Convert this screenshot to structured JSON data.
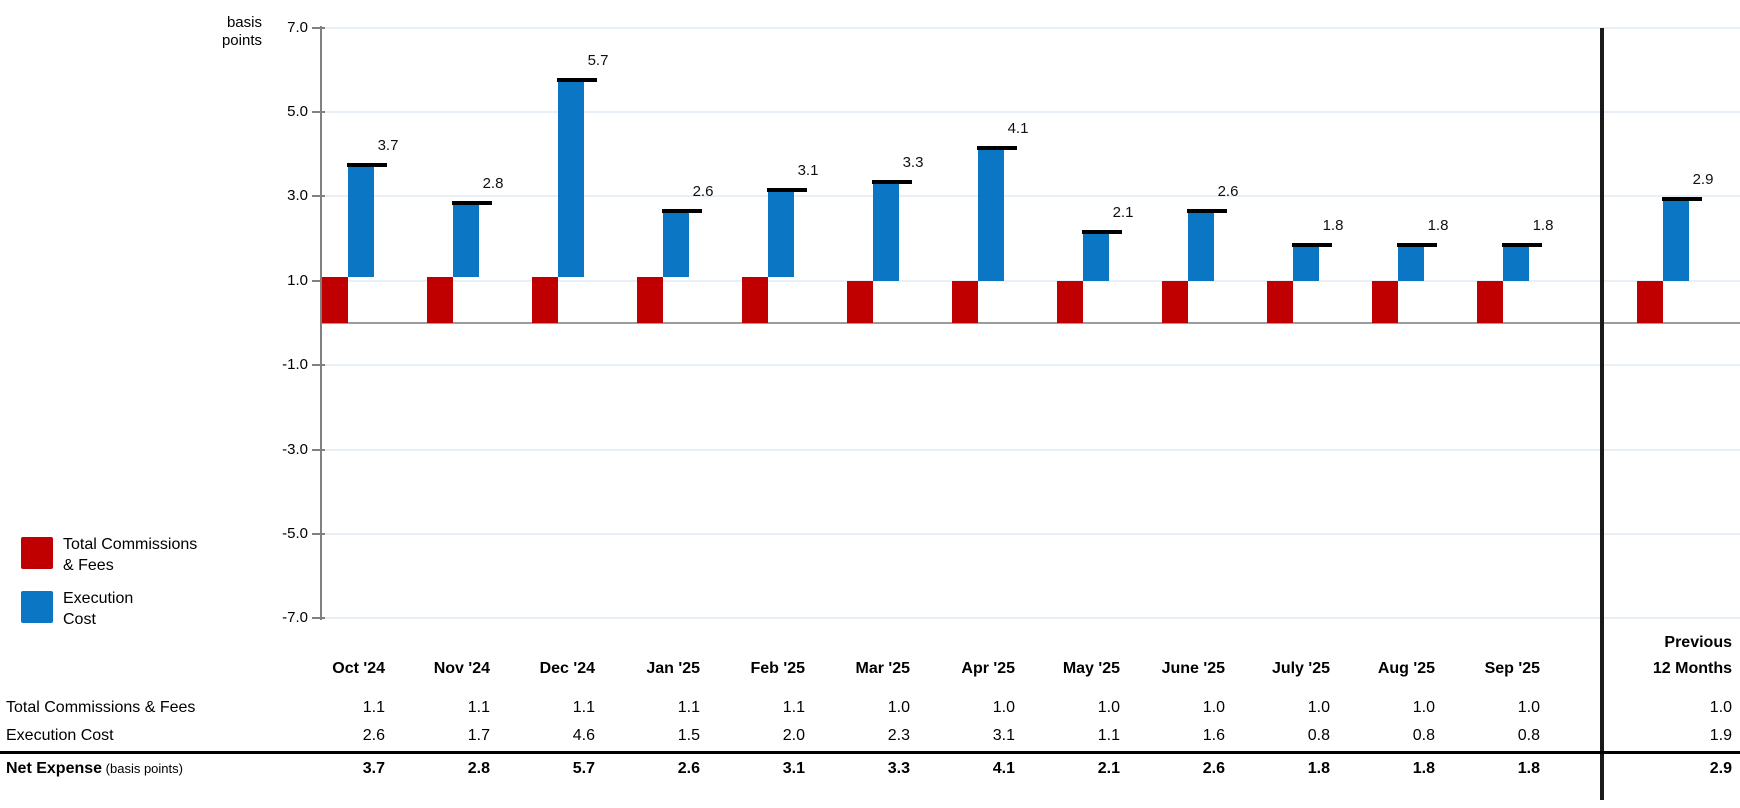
{
  "chart": {
    "y_axis_title_line1": "basis",
    "y_axis_title_line2": "points",
    "y_tick_labels": [
      "7.0",
      "5.0",
      "3.0",
      "1.0",
      "-1.0",
      "-3.0",
      "-5.0",
      "-7.0"
    ]
  },
  "chart_data": {
    "type": "bar",
    "subtype": "stacked-waterfall-column",
    "title": "",
    "xlabel": "",
    "ylabel": "basis points",
    "ylim": [
      -7.0,
      7.0
    ],
    "y_ticks": [
      7.0,
      5.0,
      3.0,
      1.0,
      -1.0,
      -3.0,
      -5.0,
      -7.0
    ],
    "grid": true,
    "legend_position": "bottom-left",
    "categories": [
      "Oct '24",
      "Nov '24",
      "Dec '24",
      "Jan '25",
      "Feb '25",
      "Mar '25",
      "Apr '25",
      "May '25",
      "June '25",
      "July '25",
      "Aug '25",
      "Sep '25",
      "Previous 12 Months"
    ],
    "series": [
      {
        "name": "Total Commissions & Fees",
        "color": "#C00000",
        "values": [
          1.1,
          1.1,
          1.1,
          1.1,
          1.1,
          1.0,
          1.0,
          1.0,
          1.0,
          1.0,
          1.0,
          1.0,
          1.0
        ]
      },
      {
        "name": "Execution Cost",
        "color": "#0B76C4",
        "values": [
          2.6,
          1.7,
          4.6,
          1.5,
          2.0,
          2.3,
          3.1,
          1.1,
          1.6,
          0.8,
          0.8,
          0.8,
          1.9
        ]
      }
    ],
    "totals": {
      "name": "Net Expense",
      "unit": "basis points",
      "values": [
        3.7,
        2.8,
        5.7,
        2.6,
        3.1,
        3.3,
        4.1,
        2.1,
        2.6,
        1.8,
        1.8,
        1.8,
        2.9
      ]
    },
    "data_labels": [
      "3.7",
      "2.8",
      "5.7",
      "2.6",
      "3.1",
      "3.3",
      "4.1",
      "2.1",
      "2.6",
      "1.8",
      "1.8",
      "1.8",
      "2.9"
    ]
  },
  "legend": {
    "items": [
      {
        "label_line1": "Total Commissions",
        "label_line2": "& Fees",
        "color": "#C00000"
      },
      {
        "label_line1": "Execution",
        "label_line2": "Cost",
        "color": "#0B76C4"
      }
    ]
  },
  "table": {
    "month_columns": [
      "Oct '24",
      "Nov '24",
      "Dec '24",
      "Jan '25",
      "Feb '25",
      "Mar '25",
      "Apr '25",
      "May '25",
      "June '25",
      "July '25",
      "Aug '25",
      "Sep '25"
    ],
    "last_column_line1": "Previous",
    "last_column_line2": "12 Months",
    "rows": [
      {
        "label": "Total Commissions & Fees",
        "suffix": "",
        "bold": false,
        "values": [
          "1.1",
          "1.1",
          "1.1",
          "1.1",
          "1.1",
          "1.0",
          "1.0",
          "1.0",
          "1.0",
          "1.0",
          "1.0",
          "1.0"
        ],
        "last_value": "1.0"
      },
      {
        "label": "Execution Cost",
        "suffix": "",
        "bold": false,
        "values": [
          "2.6",
          "1.7",
          "4.6",
          "1.5",
          "2.0",
          "2.3",
          "3.1",
          "1.1",
          "1.6",
          "0.8",
          "0.8",
          "0.8"
        ],
        "last_value": "1.9"
      },
      {
        "label": "Net Expense",
        "suffix": " (basis points)",
        "bold": true,
        "values": [
          "3.7",
          "2.8",
          "5.7",
          "2.6",
          "3.1",
          "3.3",
          "4.1",
          "2.1",
          "2.6",
          "1.8",
          "1.8",
          "1.8"
        ],
        "last_value": "2.9"
      }
    ]
  }
}
